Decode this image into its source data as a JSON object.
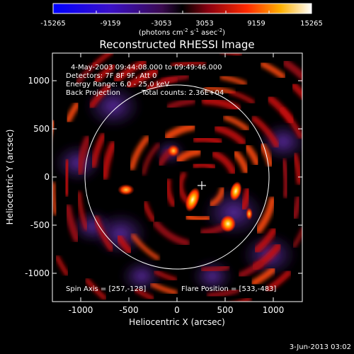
{
  "colorbar": {
    "ticks": [
      "-15265",
      "-9159",
      "-3053",
      "3053",
      "9159",
      "15265"
    ],
    "units_main": "(photons cm",
    "units_exp1": "-2",
    "units_mid": " s",
    "units_exp2": "-1",
    "units_mid2": " asec",
    "units_exp3": "-2",
    "units_end": ")"
  },
  "title": "Reconstructed RHESSI Image",
  "info": {
    "time_range": "4-May-2003 09:44:08.000 to 09:49:46.000",
    "detectors": "Detectors: 7F 8F 9F, Att 0",
    "energy": "Energy Range: 6.0 - 25.0 keV",
    "method": "Back Projection",
    "counts": "Total counts: 2.36E+04"
  },
  "footer": {
    "spin_axis": "Spin Axis = [257,-128]",
    "flare_position": "Flare Position = [533,-483]",
    "date": "3-Jun-2013 03:02"
  },
  "axes": {
    "xlabel": "Heliocentric X (arcsec)",
    "ylabel": "Heliocentric Y (arcsec)",
    "x_ticks": [
      "-1000",
      "-500",
      "0",
      "500",
      "1000"
    ],
    "y_ticks": [
      "1000",
      "500",
      "0",
      "-500",
      "-1000"
    ]
  },
  "colors": {
    "background": "#000000",
    "text": "#ffffff"
  }
}
